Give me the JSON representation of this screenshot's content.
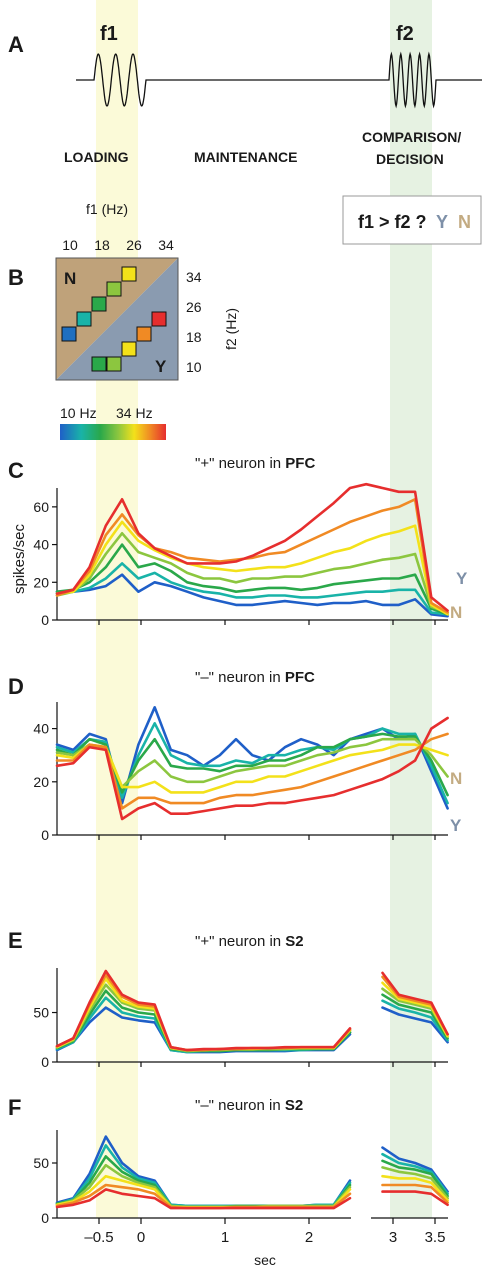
{
  "panel_a": {
    "letter": "A",
    "f1_label": "f1",
    "f2_label": "f2",
    "phase_loading": "LOADING",
    "phase_maintenance": "MAINTENANCE",
    "phase_comparison": "COMPARISON/",
    "phase_decision": "DECISION",
    "question": "f1 > f2 ?",
    "yes": "Y",
    "no": "N"
  },
  "panel_b": {
    "letter": "B",
    "xaxis_label": "f1 (Hz)",
    "yaxis_label": "f2 (Hz)",
    "f1_ticks": [
      "10",
      "18",
      "26",
      "34"
    ],
    "f2_ticks": [
      "34",
      "26",
      "18",
      "10"
    ],
    "region_n": "N",
    "region_y": "Y",
    "colorbar_min": "10 Hz",
    "colorbar_max": "34 Hz"
  },
  "colors": {
    "no_region": "#bfa27a",
    "yes_region": "#8a9bb0",
    "loading_band": "#fbfad8",
    "comparison_band": "#e6f2e2",
    "y_trace": "#7e90a8",
    "n_trace": "#c3ab82"
  },
  "x_axis": {
    "label": "sec",
    "ticks": [
      "–0.5",
      "0",
      "1",
      "2",
      "3",
      "3.5"
    ]
  },
  "chart_data": [
    {
      "type": "line",
      "panel": "C",
      "title_prefix": "\"+\" neuron in ",
      "title_bold": "PFC",
      "ylabel": "spikes/sec",
      "yticks": [
        "0",
        "20",
        "40",
        "60"
      ],
      "ylim": [
        0,
        70
      ],
      "xlim": [
        -1.0,
        3.7
      ],
      "end_labels": [
        "Y",
        "N"
      ],
      "stimulus_hz": [
        10,
        14,
        18,
        22,
        26,
        30,
        34
      ],
      "series_y": [
        [
          15,
          15,
          16,
          18,
          24,
          15,
          20,
          18,
          15,
          12,
          10,
          8,
          8,
          9,
          10,
          9,
          8,
          9,
          9,
          10,
          8,
          8,
          11,
          3,
          2
        ],
        [
          14,
          15,
          17,
          22,
          30,
          22,
          25,
          20,
          17,
          15,
          14,
          12,
          12,
          13,
          13,
          12,
          12,
          13,
          14,
          15,
          15,
          16,
          16,
          4,
          3
        ],
        [
          15,
          16,
          20,
          28,
          40,
          28,
          30,
          26,
          20,
          18,
          17,
          15,
          16,
          17,
          17,
          16,
          17,
          19,
          20,
          21,
          22,
          22,
          24,
          6,
          3
        ],
        [
          13,
          15,
          22,
          35,
          46,
          36,
          33,
          30,
          25,
          22,
          22,
          20,
          22,
          22,
          23,
          23,
          25,
          27,
          28,
          30,
          32,
          33,
          35,
          7,
          4
        ],
        [
          14,
          15,
          24,
          40,
          52,
          42,
          37,
          33,
          30,
          28,
          27,
          26,
          27,
          28,
          28,
          30,
          33,
          36,
          38,
          42,
          45,
          47,
          50,
          8,
          3
        ],
        [
          13,
          16,
          26,
          45,
          56,
          45,
          38,
          36,
          33,
          32,
          31,
          32,
          33,
          35,
          36,
          40,
          44,
          48,
          52,
          55,
          58,
          60,
          64,
          9,
          4
        ],
        [
          14,
          16,
          28,
          50,
          64,
          46,
          38,
          34,
          30,
          30,
          30,
          31,
          34,
          38,
          42,
          48,
          55,
          62,
          70,
          72,
          70,
          68,
          68,
          12,
          5
        ]
      ]
    },
    {
      "type": "line",
      "panel": "D",
      "title_prefix": "\"–\" neuron in ",
      "title_bold": "PFC",
      "ylabel": "",
      "yticks": [
        "0",
        "20",
        "40"
      ],
      "ylim": [
        0,
        50
      ],
      "xlim": [
        -1.0,
        3.7
      ],
      "end_labels": [
        "N",
        "Y"
      ],
      "series_y": [
        [
          34,
          32,
          38,
          36,
          12,
          34,
          48,
          32,
          30,
          26,
          30,
          36,
          30,
          28,
          33,
          36,
          34,
          30,
          36,
          38,
          40,
          36,
          38,
          24,
          10
        ],
        [
          33,
          31,
          36,
          35,
          14,
          30,
          42,
          30,
          27,
          26,
          26,
          28,
          27,
          30,
          30,
          32,
          33,
          32,
          36,
          37,
          40,
          38,
          38,
          26,
          12
        ],
        [
          32,
          30,
          36,
          34,
          16,
          28,
          36,
          26,
          25,
          25,
          24,
          26,
          26,
          28,
          28,
          30,
          33,
          33,
          36,
          37,
          38,
          37,
          37,
          28,
          15
        ],
        [
          31,
          30,
          34,
          33,
          18,
          24,
          28,
          22,
          20,
          20,
          22,
          24,
          25,
          26,
          26,
          28,
          30,
          31,
          33,
          34,
          36,
          36,
          36,
          30,
          22
        ],
        [
          30,
          29,
          34,
          33,
          18,
          18,
          20,
          16,
          16,
          16,
          18,
          20,
          20,
          22,
          22,
          24,
          26,
          28,
          30,
          31,
          32,
          34,
          34,
          32,
          30
        ],
        [
          28,
          28,
          34,
          33,
          10,
          14,
          14,
          12,
          12,
          12,
          14,
          15,
          15,
          16,
          17,
          18,
          20,
          22,
          24,
          26,
          28,
          30,
          32,
          36,
          38
        ],
        [
          26,
          27,
          33,
          32,
          6,
          10,
          12,
          8,
          8,
          9,
          10,
          11,
          11,
          12,
          12,
          13,
          14,
          15,
          17,
          19,
          21,
          24,
          28,
          40,
          44
        ]
      ]
    },
    {
      "type": "line",
      "panel": "E",
      "title_prefix": "\"+\" neuron in ",
      "title_bold": "S2",
      "ylabel": "",
      "yticks": [
        "0",
        "50"
      ],
      "ylim": [
        0,
        95
      ],
      "xlim": [
        -1.0,
        3.7
      ],
      "gap": [
        2.55,
        2.8
      ],
      "series_y": [
        [
          12,
          20,
          40,
          55,
          45,
          42,
          40,
          12,
          10,
          10,
          10,
          11,
          11,
          11,
          11,
          12,
          12,
          12,
          28,
          32,
          55,
          48,
          44,
          40,
          20
        ],
        [
          13,
          20,
          44,
          65,
          50,
          46,
          44,
          12,
          10,
          11,
          11,
          12,
          12,
          12,
          12,
          12,
          13,
          13,
          30,
          34,
          62,
          54,
          50,
          45,
          22
        ],
        [
          14,
          21,
          48,
          72,
          55,
          50,
          48,
          13,
          11,
          11,
          11,
          12,
          12,
          12,
          13,
          13,
          13,
          13,
          30,
          35,
          68,
          58,
          54,
          50,
          24
        ],
        [
          15,
          22,
          52,
          78,
          60,
          54,
          52,
          14,
          11,
          12,
          12,
          13,
          13,
          13,
          13,
          14,
          14,
          14,
          32,
          36,
          74,
          62,
          58,
          54,
          26
        ],
        [
          15,
          23,
          55,
          84,
          62,
          56,
          54,
          14,
          12,
          12,
          13,
          13,
          13,
          14,
          14,
          14,
          14,
          14,
          32,
          36,
          80,
          64,
          60,
          56,
          26
        ],
        [
          16,
          24,
          58,
          88,
          66,
          58,
          56,
          15,
          12,
          12,
          13,
          13,
          14,
          14,
          14,
          15,
          15,
          15,
          33,
          38,
          86,
          66,
          62,
          58,
          28
        ],
        [
          16,
          24,
          60,
          92,
          68,
          60,
          58,
          15,
          12,
          13,
          13,
          14,
          14,
          14,
          15,
          15,
          15,
          15,
          34,
          38,
          90,
          68,
          64,
          60,
          28
        ]
      ]
    },
    {
      "type": "line",
      "panel": "F",
      "title_prefix": "\"–\" neuron in ",
      "title_bold": "S2",
      "ylabel": "",
      "yticks": [
        "0",
        "50"
      ],
      "ylim": [
        0,
        80
      ],
      "xlim": [
        -1.0,
        3.7
      ],
      "gap": [
        2.55,
        2.8
      ],
      "series_y": [
        [
          14,
          18,
          40,
          74,
          50,
          38,
          34,
          12,
          11,
          11,
          11,
          11,
          11,
          11,
          11,
          11,
          12,
          12,
          34,
          40,
          64,
          54,
          50,
          44,
          24
        ],
        [
          13,
          17,
          36,
          66,
          46,
          36,
          32,
          12,
          11,
          11,
          11,
          11,
          11,
          11,
          11,
          11,
          12,
          12,
          32,
          38,
          58,
          50,
          47,
          42,
          22
        ],
        [
          13,
          16,
          32,
          56,
          42,
          34,
          30,
          11,
          10,
          10,
          10,
          11,
          11,
          11,
          11,
          11,
          11,
          11,
          30,
          36,
          52,
          46,
          44,
          40,
          20
        ],
        [
          12,
          16,
          28,
          48,
          38,
          32,
          28,
          11,
          10,
          10,
          10,
          10,
          10,
          11,
          11,
          11,
          11,
          11,
          28,
          34,
          46,
          42,
          40,
          36,
          18
        ],
        [
          12,
          15,
          24,
          38,
          34,
          30,
          26,
          10,
          10,
          10,
          10,
          10,
          10,
          10,
          10,
          10,
          10,
          10,
          26,
          32,
          38,
          36,
          36,
          32,
          16
        ],
        [
          11,
          14,
          20,
          30,
          28,
          26,
          22,
          10,
          9,
          9,
          9,
          10,
          10,
          10,
          10,
          10,
          10,
          10,
          22,
          28,
          30,
          30,
          30,
          28,
          14
        ],
        [
          10,
          12,
          16,
          26,
          22,
          20,
          18,
          9,
          9,
          9,
          9,
          9,
          9,
          9,
          9,
          9,
          9,
          9,
          18,
          22,
          24,
          24,
          24,
          22,
          12
        ]
      ]
    }
  ]
}
